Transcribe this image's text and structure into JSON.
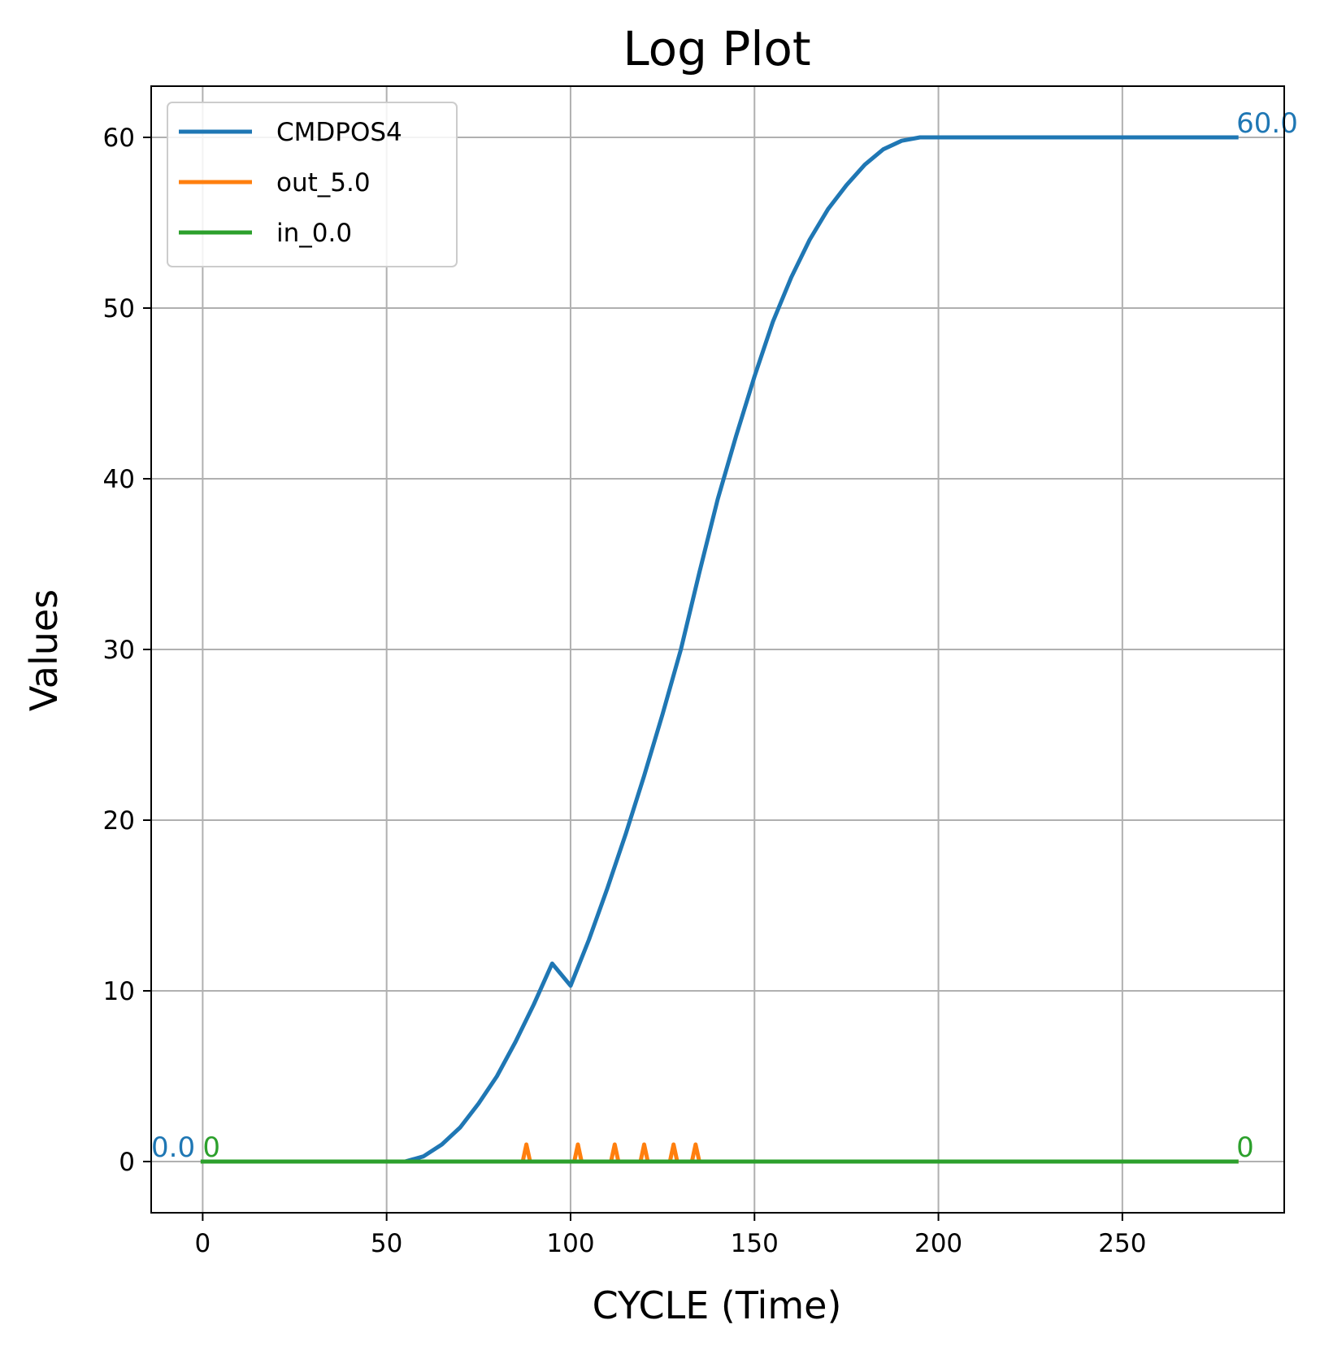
{
  "chart_data": {
    "type": "line",
    "title": "Log Plot",
    "xlabel": "CYCLE (Time)",
    "ylabel": "Values",
    "xlim": [
      -14,
      294
    ],
    "ylim": [
      -3,
      63
    ],
    "x_ticks": [
      0,
      50,
      100,
      150,
      200,
      250
    ],
    "y_ticks": [
      0,
      10,
      20,
      30,
      40,
      50,
      60
    ],
    "grid": true,
    "legend_position": "upper-left",
    "series": [
      {
        "name": "CMDPOS4",
        "color": "#1f77b4",
        "x": [
          0,
          55,
          60,
          65,
          70,
          75,
          80,
          85,
          90,
          95,
          100,
          105,
          110,
          115,
          120,
          125,
          130,
          135,
          140,
          145,
          150,
          155,
          160,
          165,
          170,
          175,
          180,
          185,
          190,
          195,
          200,
          205,
          210,
          281
        ],
        "y": [
          0,
          0,
          0.3,
          1.0,
          2.0,
          3.4,
          5.0,
          7.0,
          9.2,
          11.6,
          10.3,
          13.0,
          16.0,
          19.2,
          22.6,
          26.2,
          30.0,
          34.5,
          38.8,
          42.5,
          46.0,
          49.2,
          51.8,
          54.0,
          55.8,
          57.2,
          58.4,
          59.3,
          59.8,
          60.0,
          60.0,
          60.0,
          60.0,
          60.0
        ]
      },
      {
        "name": "out_5.0",
        "color": "#ff7f0e",
        "x": [
          0,
          87,
          88,
          89,
          101,
          102,
          103,
          111,
          112,
          113,
          119,
          120,
          121,
          127,
          128,
          129,
          133,
          134,
          135,
          281
        ],
        "y": [
          0,
          0,
          1,
          0,
          0,
          1,
          0,
          0,
          1,
          0,
          0,
          1,
          0,
          0,
          1,
          0,
          0,
          1,
          0,
          0
        ]
      },
      {
        "name": "in_0.0",
        "color": "#2ca02c",
        "x": [
          0,
          281
        ],
        "y": [
          0,
          0
        ]
      }
    ],
    "annotations": [
      {
        "text": "0.0",
        "x": -14,
        "y": 0,
        "color": "#1f77b4"
      },
      {
        "text": "60.0",
        "x": 281,
        "y": 60,
        "color": "#1f77b4"
      },
      {
        "text": "0",
        "x": 0,
        "y": 0,
        "color": "#2ca02c"
      },
      {
        "text": "0",
        "x": 281,
        "y": 0,
        "color": "#2ca02c"
      }
    ]
  }
}
